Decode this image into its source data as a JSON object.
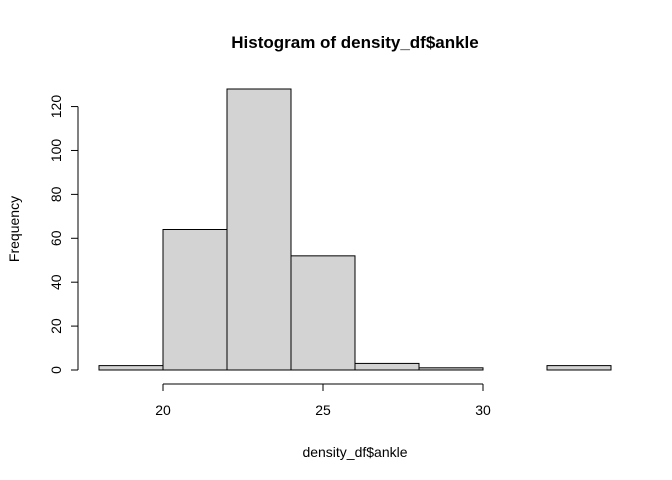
{
  "chart_data": {
    "type": "bar",
    "title": "Histogram of density_df$ankle",
    "xlabel": "density_df$ankle",
    "ylabel": "Frequency",
    "bins": [
      {
        "start": 18,
        "end": 20,
        "count": 2
      },
      {
        "start": 20,
        "end": 22,
        "count": 64
      },
      {
        "start": 22,
        "end": 24,
        "count": 128
      },
      {
        "start": 24,
        "end": 26,
        "count": 52
      },
      {
        "start": 26,
        "end": 28,
        "count": 3
      },
      {
        "start": 28,
        "end": 30,
        "count": 1
      },
      {
        "start": 30,
        "end": 32,
        "count": 0
      },
      {
        "start": 32,
        "end": 34,
        "count": 2
      }
    ],
    "xlim": [
      18,
      34
    ],
    "ylim": [
      0,
      128
    ],
    "x_ticks": [
      20,
      25,
      30
    ],
    "y_ticks": [
      0,
      20,
      40,
      60,
      80,
      100,
      120
    ],
    "bar_color": "#d3d3d3",
    "grid": false,
    "legend": "none"
  }
}
